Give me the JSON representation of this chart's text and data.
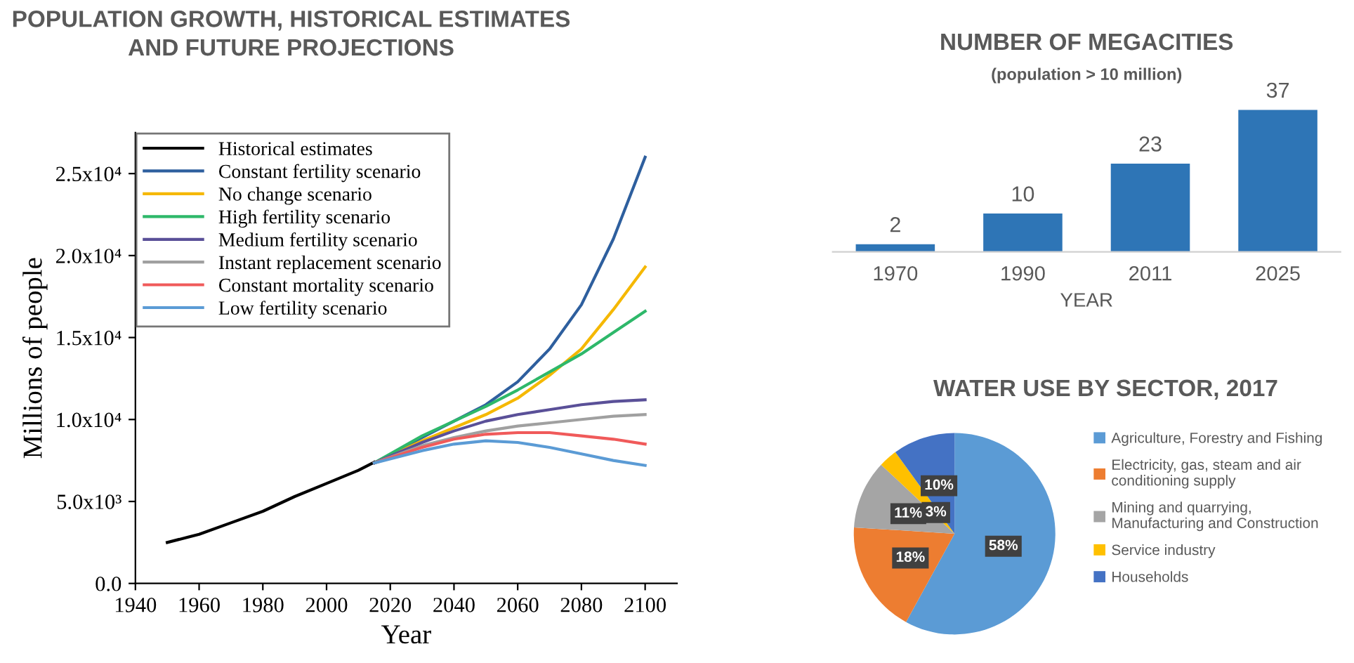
{
  "chart_data": [
    {
      "type": "line",
      "title": "POPULATION GROWTH, HISTORICAL ESTIMATES\nAND FUTURE PROJECTIONS",
      "xlabel": "Year",
      "ylabel": "Millions of people",
      "xlim": [
        1940,
        2110
      ],
      "xticks": [
        1940,
        1960,
        1980,
        2000,
        2020,
        2040,
        2060,
        2080,
        2100
      ],
      "ylim": [
        0,
        27500
      ],
      "yticks": [
        {
          "value": 0,
          "label": "0.0"
        },
        {
          "value": 5000,
          "label": "5.0x10³"
        },
        {
          "value": 10000,
          "label": "1.0x10⁴"
        },
        {
          "value": 15000,
          "label": "1.5x10⁴"
        },
        {
          "value": 20000,
          "label": "2.0x10⁴"
        },
        {
          "value": 25000,
          "label": "2.5x10⁴"
        }
      ],
      "legend": "top left",
      "grid": false,
      "series": [
        {
          "name": "Historical estimates",
          "color": "#000000",
          "x": [
            1950,
            1960,
            1970,
            1980,
            1990,
            2000,
            2010,
            2015
          ],
          "values": [
            2500,
            3000,
            3700,
            4400,
            5300,
            6100,
            6900,
            7400
          ]
        },
        {
          "name": "Constant fertility scenario",
          "color": "#2e5f9e",
          "x": [
            2015,
            2030,
            2040,
            2050,
            2060,
            2070,
            2080,
            2090,
            2100
          ],
          "values": [
            7350,
            8900,
            9900,
            10900,
            12300,
            14300,
            17000,
            21000,
            26000
          ]
        },
        {
          "name": "No change scenario",
          "color": "#f5b800",
          "x": [
            2015,
            2030,
            2040,
            2050,
            2060,
            2070,
            2080,
            2090,
            2100
          ],
          "values": [
            7350,
            8700,
            9500,
            10300,
            11300,
            12700,
            14300,
            16700,
            19300
          ]
        },
        {
          "name": "High fertility scenario",
          "color": "#2eb86a",
          "x": [
            2015,
            2030,
            2040,
            2050,
            2060,
            2070,
            2080,
            2090,
            2100
          ],
          "values": [
            7350,
            9000,
            9900,
            10800,
            11800,
            12900,
            14000,
            15300,
            16600
          ]
        },
        {
          "name": "Medium fertility scenario",
          "color": "#5a5098",
          "x": [
            2015,
            2030,
            2040,
            2050,
            2060,
            2070,
            2080,
            2090,
            2100
          ],
          "values": [
            7350,
            8600,
            9300,
            9900,
            10300,
            10600,
            10900,
            11100,
            11200
          ]
        },
        {
          "name": "Instant replacement scenario",
          "color": "#a0a0a0",
          "x": [
            2015,
            2030,
            2040,
            2050,
            2060,
            2070,
            2080,
            2090,
            2100
          ],
          "values": [
            7350,
            8400,
            8900,
            9300,
            9600,
            9800,
            10000,
            10200,
            10300
          ]
        },
        {
          "name": "Constant mortality scenario",
          "color": "#f05a5a",
          "x": [
            2015,
            2030,
            2040,
            2050,
            2060,
            2070,
            2080,
            2090,
            2100
          ],
          "values": [
            7350,
            8300,
            8800,
            9100,
            9200,
            9200,
            9000,
            8800,
            8500
          ]
        },
        {
          "name": "Low fertility scenario",
          "color": "#5b9bd5",
          "x": [
            2015,
            2030,
            2040,
            2050,
            2060,
            2070,
            2080,
            2090,
            2100
          ],
          "values": [
            7350,
            8100,
            8500,
            8700,
            8600,
            8300,
            7900,
            7500,
            7200
          ]
        }
      ]
    },
    {
      "type": "bar",
      "title": "NUMBER OF MEGACITIES",
      "subtitle": "(population > 10 million)",
      "xlabel": "YEAR",
      "categories": [
        "1970",
        "1990",
        "2011",
        "2025"
      ],
      "values": [
        2,
        10,
        23,
        37
      ],
      "color": "#2e75b6",
      "data_labels": true
    },
    {
      "type": "pie",
      "title": "WATER USE BY SECTOR, 2017",
      "categories": [
        "Agriculture, Forestry and Fishing",
        "Electricity, gas, steam and air\nconditioning supply",
        "Mining and quarrying,\nManufacturing and Construction",
        "Service industry",
        "Households"
      ],
      "values": [
        58,
        18,
        11,
        3,
        10
      ],
      "colors": [
        "#5b9bd5",
        "#ed7d31",
        "#a5a5a5",
        "#ffc000",
        "#4472c4"
      ],
      "value_labels": [
        "58%",
        "18%",
        "11%",
        "3%",
        "10%"
      ],
      "legend": "right"
    }
  ]
}
